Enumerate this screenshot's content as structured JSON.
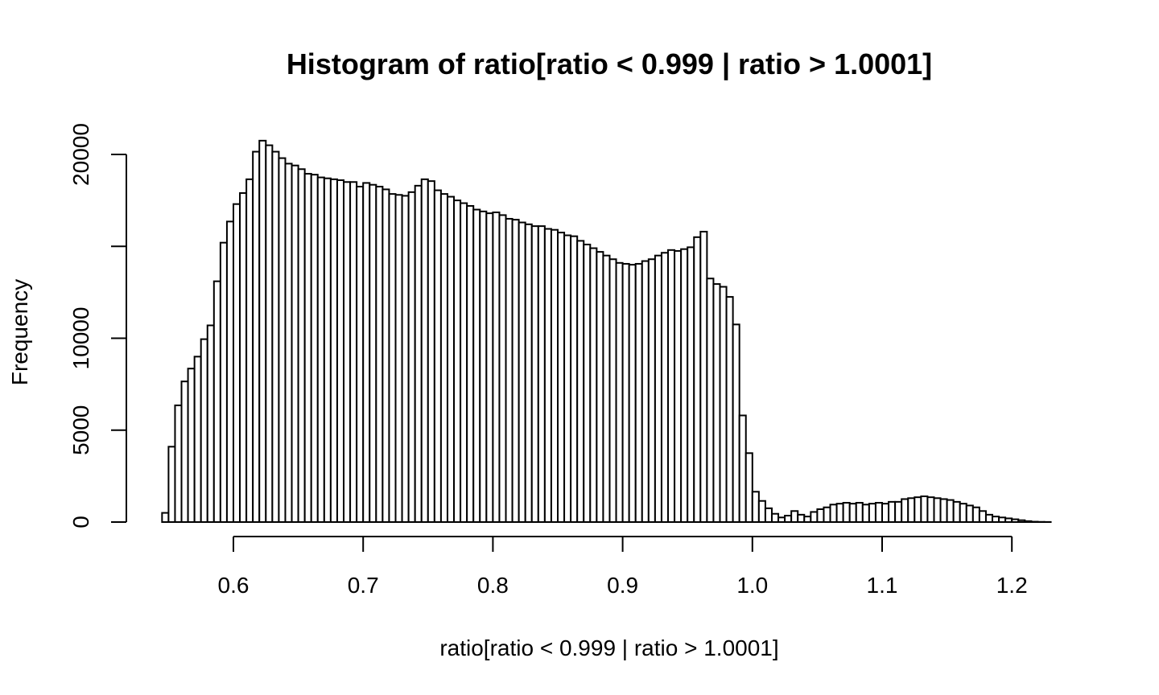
{
  "chart_data": {
    "type": "bar",
    "subtype": "histogram",
    "title": "Histogram of ratio[ratio < 0.999 | ratio > 1.0001]",
    "xlabel": "ratio[ratio < 0.999 | ratio > 1.0001]",
    "ylabel": "Frequency",
    "xlim": [
      0.545,
      1.235
    ],
    "ylim": [
      0,
      21000
    ],
    "bin_width": 0.005,
    "x_ticks": [
      0.6,
      0.7,
      0.8,
      0.9,
      1.0,
      1.1,
      1.2
    ],
    "x_tick_labels": [
      "0.6",
      "0.7",
      "0.8",
      "0.9",
      "1.0",
      "1.1",
      "1.2"
    ],
    "y_ticks": [
      0,
      5000,
      10000,
      15000,
      20000
    ],
    "y_tick_labels": [
      "0",
      "5000",
      "10000",
      "",
      "20000"
    ],
    "grid": false,
    "legend": "none",
    "bins_start": [
      0.545,
      0.55,
      0.555,
      0.56,
      0.565,
      0.57,
      0.575,
      0.58,
      0.585,
      0.59,
      0.595,
      0.6,
      0.605,
      0.61,
      0.615,
      0.62,
      0.625,
      0.63,
      0.635,
      0.64,
      0.645,
      0.65,
      0.655,
      0.66,
      0.665,
      0.67,
      0.675,
      0.68,
      0.685,
      0.69,
      0.695,
      0.7,
      0.705,
      0.71,
      0.715,
      0.72,
      0.725,
      0.73,
      0.735,
      0.74,
      0.745,
      0.75,
      0.755,
      0.76,
      0.765,
      0.77,
      0.775,
      0.78,
      0.785,
      0.79,
      0.795,
      0.8,
      0.805,
      0.81,
      0.815,
      0.82,
      0.825,
      0.83,
      0.835,
      0.84,
      0.845,
      0.85,
      0.855,
      0.86,
      0.865,
      0.87,
      0.875,
      0.88,
      0.885,
      0.89,
      0.895,
      0.9,
      0.905,
      0.91,
      0.915,
      0.92,
      0.925,
      0.93,
      0.935,
      0.94,
      0.945,
      0.95,
      0.955,
      0.96,
      0.965,
      0.97,
      0.975,
      0.98,
      0.985,
      0.99,
      0.995,
      1.0,
      1.005,
      1.01,
      1.015,
      1.02,
      1.025,
      1.03,
      1.035,
      1.04,
      1.045,
      1.05,
      1.055,
      1.06,
      1.065,
      1.07,
      1.075,
      1.08,
      1.085,
      1.09,
      1.095,
      1.1,
      1.105,
      1.11,
      1.115,
      1.12,
      1.125,
      1.13,
      1.135,
      1.14,
      1.145,
      1.15,
      1.155,
      1.16,
      1.165,
      1.17,
      1.175,
      1.18,
      1.185,
      1.19,
      1.195,
      1.2,
      1.205,
      1.21,
      1.215,
      1.22,
      1.225,
      1.23
    ],
    "values": [
      500,
      4100,
      6350,
      7650,
      8350,
      9000,
      9950,
      10700,
      13100,
      15200,
      16350,
      17300,
      17900,
      18650,
      20150,
      20750,
      20500,
      20150,
      19800,
      19500,
      19400,
      19200,
      18950,
      18900,
      18750,
      18700,
      18650,
      18600,
      18500,
      18500,
      18250,
      18450,
      18350,
      18250,
      18100,
      17850,
      17800,
      17750,
      17950,
      18300,
      18650,
      18550,
      18050,
      17850,
      17700,
      17500,
      17350,
      17200,
      17000,
      16900,
      16800,
      16850,
      16700,
      16500,
      16450,
      16300,
      16200,
      16100,
      16100,
      15950,
      15900,
      15750,
      15600,
      15550,
      15300,
      15100,
      14900,
      14700,
      14500,
      14300,
      14100,
      14050,
      14000,
      14050,
      14200,
      14300,
      14500,
      14650,
      14800,
      14750,
      14850,
      14950,
      15500,
      15800,
      13250,
      12950,
      12800,
      12250,
      10750,
      5800,
      3750,
      1650,
      1150,
      750,
      450,
      250,
      350,
      600,
      400,
      300,
      550,
      700,
      800,
      950,
      1000,
      1050,
      1000,
      1050,
      950,
      1000,
      1050,
      1000,
      1100,
      1100,
      1250,
      1300,
      1350,
      1400,
      1350,
      1300,
      1250,
      1200,
      1100,
      1000,
      900,
      800,
      600,
      400,
      300,
      250,
      200,
      150,
      100,
      50,
      20,
      10,
      5,
      0
    ]
  }
}
